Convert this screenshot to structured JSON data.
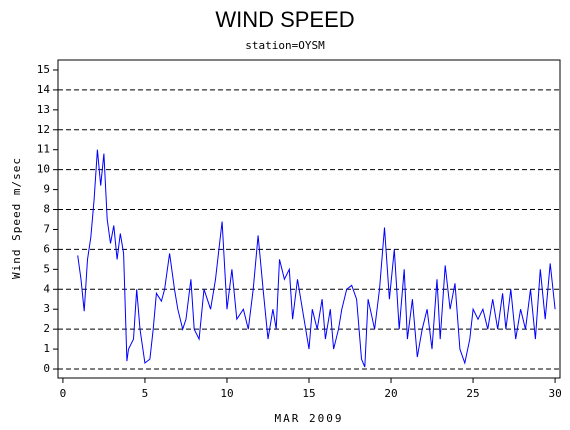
{
  "chart_data": {
    "type": "line",
    "title": "WIND SPEED",
    "subtitle": "station=OYSM",
    "x_label": "MAR 2009",
    "y_label": "Wind Speed m/sec",
    "x": [
      0.9,
      1.1,
      1.3,
      1.5,
      1.7,
      1.9,
      2.1,
      2.3,
      2.5,
      2.7,
      2.9,
      3.1,
      3.3,
      3.5,
      3.7,
      3.9,
      4.0,
      4.3,
      4.5,
      4.7,
      5.0,
      5.3,
      5.5,
      5.7,
      6.0,
      6.2,
      6.5,
      6.8,
      7.0,
      7.3,
      7.5,
      7.8,
      8.0,
      8.3,
      8.6,
      9.0,
      9.3,
      9.7,
      10.0,
      10.3,
      10.6,
      11.0,
      11.3,
      11.6,
      11.9,
      12.2,
      12.5,
      12.8,
      13.0,
      13.2,
      13.5,
      13.8,
      14.0,
      14.3,
      14.6,
      15.0,
      15.2,
      15.5,
      15.8,
      16.0,
      16.3,
      16.5,
      16.8,
      17.0,
      17.3,
      17.6,
      17.9,
      18.2,
      18.4,
      18.6,
      19.0,
      19.3,
      19.6,
      19.9,
      20.2,
      20.5,
      20.8,
      21.0,
      21.3,
      21.6,
      21.9,
      22.2,
      22.5,
      22.8,
      23.0,
      23.3,
      23.6,
      23.9,
      24.2,
      24.5,
      24.8,
      25.0,
      25.3,
      25.6,
      25.9,
      26.2,
      26.5,
      26.8,
      27.0,
      27.3,
      27.6,
      27.9,
      28.2,
      28.5,
      28.8,
      29.1,
      29.4,
      29.7,
      30.0
    ],
    "values": [
      5.7,
      4.5,
      2.9,
      5.5,
      6.6,
      8.5,
      11.0,
      9.2,
      10.8,
      7.5,
      6.3,
      7.2,
      5.5,
      6.8,
      5.8,
      0.4,
      1.0,
      1.5,
      4.0,
      2.0,
      0.3,
      0.5,
      2.0,
      3.8,
      3.4,
      4.0,
      5.8,
      4.0,
      3.0,
      2.0,
      2.5,
      4.5,
      2.0,
      1.5,
      4.0,
      3.0,
      4.5,
      7.4,
      3.0,
      5.0,
      2.5,
      3.0,
      2.0,
      4.0,
      6.7,
      4.0,
      1.5,
      3.0,
      2.0,
      5.5,
      4.5,
      5.0,
      2.5,
      4.5,
      3.0,
      1.0,
      3.0,
      2.0,
      3.5,
      1.5,
      3.0,
      1.0,
      2.0,
      3.0,
      4.0,
      4.2,
      3.5,
      0.5,
      0.1,
      3.5,
      2.0,
      4.0,
      7.1,
      3.5,
      6.0,
      2.0,
      5.0,
      1.5,
      3.5,
      0.6,
      2.0,
      3.0,
      1.0,
      4.5,
      1.5,
      5.2,
      3.0,
      4.3,
      1.0,
      0.3,
      1.5,
      3.0,
      2.5,
      3.0,
      2.0,
      3.5,
      2.0,
      3.8,
      2.0,
      4.0,
      1.5,
      3.0,
      2.0,
      4.0,
      1.5,
      5.0,
      2.5,
      5.3,
      3.0
    ],
    "color": "#0000ff",
    "xlim": [
      -0.3,
      30.3
    ],
    "ylim": [
      -0.45,
      15.5
    ],
    "xticks": [
      0,
      5,
      10,
      15,
      20,
      25,
      30
    ],
    "yticks": [
      0,
      1,
      2,
      3,
      4,
      5,
      6,
      7,
      8,
      9,
      10,
      11,
      12,
      13,
      14,
      15
    ],
    "grid_step": 2
  }
}
